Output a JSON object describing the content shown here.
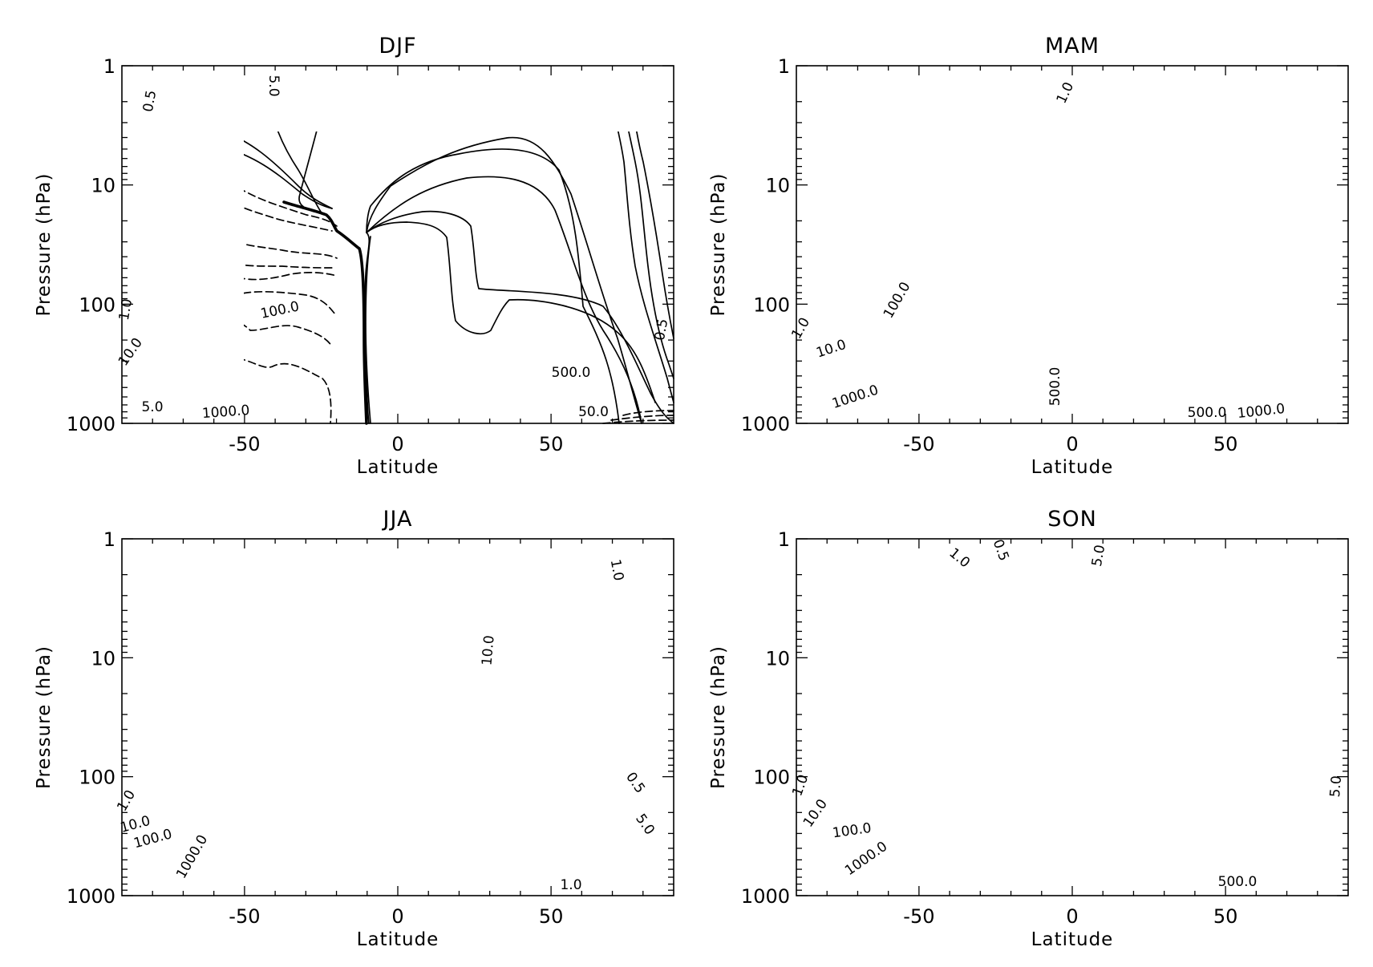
{
  "chart_data": [
    {
      "type": "contour",
      "title": "DJF",
      "xlabel": "Latitude",
      "ylabel": "Pressure (hPa)",
      "xlim": [
        -90,
        90
      ],
      "ylim": [
        1000,
        1
      ],
      "ylog": true,
      "xticks": [
        "-50",
        "0",
        "50"
      ],
      "yticks": [
        "1",
        "10",
        "100",
        "1000"
      ],
      "contour_labels": [
        "0.5",
        "5.0",
        "1.0",
        "10.0",
        "100.0",
        "1000.0",
        "500.0",
        "5.0",
        "50.0",
        "0.5"
      ],
      "negative_style": "dashed",
      "positive_style": "solid"
    },
    {
      "type": "contour",
      "title": "MAM",
      "xlabel": "Latitude",
      "ylabel": "Pressure (hPa)",
      "xlim": [
        -90,
        90
      ],
      "ylim": [
        1000,
        1
      ],
      "ylog": true,
      "xticks": [
        "-50",
        "0",
        "50"
      ],
      "yticks": [
        "1",
        "10",
        "100",
        "1000"
      ],
      "contour_labels": [
        "1.0",
        "1.0",
        "10.0",
        "100.0",
        "1000.0",
        "500.0",
        "500.0",
        "1000.0"
      ],
      "negative_style": "dashed",
      "positive_style": "solid"
    },
    {
      "type": "contour",
      "title": "JJA",
      "xlabel": "Latitude",
      "ylabel": "Pressure (hPa)",
      "xlim": [
        -90,
        90
      ],
      "ylim": [
        1000,
        1
      ],
      "ylog": true,
      "xticks": [
        "-50",
        "0",
        "50"
      ],
      "yticks": [
        "1",
        "10",
        "100",
        "1000"
      ],
      "contour_labels": [
        "1.0",
        "10.0",
        "1.0",
        "10.0",
        "100.0",
        "1000.0",
        "0.5",
        "5.0",
        "1.0"
      ],
      "negative_style": "dashed",
      "positive_style": "solid"
    },
    {
      "type": "contour",
      "title": "SON",
      "xlabel": "Latitude",
      "ylabel": "Pressure (hPa)",
      "xlim": [
        -90,
        90
      ],
      "ylim": [
        1000,
        1
      ],
      "ylog": true,
      "xticks": [
        "-50",
        "0",
        "50"
      ],
      "yticks": [
        "1",
        "10",
        "100",
        "1000"
      ],
      "contour_labels": [
        "1.0",
        "0.5",
        "5.0",
        "1.0",
        "10.0",
        "100.0",
        "1000.0",
        "500.0",
        "5.0"
      ],
      "negative_style": "dashed",
      "positive_style": "solid"
    }
  ]
}
